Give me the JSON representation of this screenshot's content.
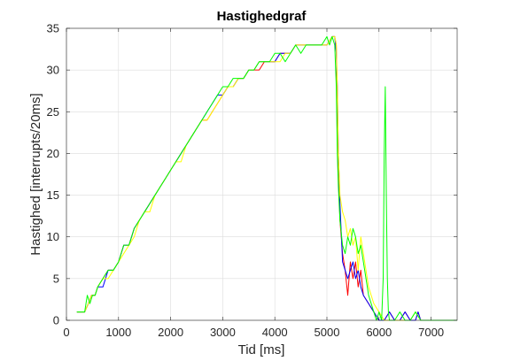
{
  "chart_data": {
    "type": "line",
    "title": "Hastighedgraf",
    "xlabel": "Tid [ms]",
    "ylabel": "Hastighed [interrupts/20ms]",
    "xlim": [
      0,
      7500
    ],
    "ylim": [
      0,
      35
    ],
    "xticks": [
      0,
      1000,
      2000,
      3000,
      4000,
      5000,
      6000,
      7000
    ],
    "xtick_labels": [
      "0",
      "1000",
      "2000",
      "3000",
      "4000",
      "5000",
      "6000",
      "7000"
    ],
    "yticks": [
      0,
      5,
      10,
      15,
      20,
      25,
      30,
      35
    ],
    "ytick_labels": [
      "0",
      "5",
      "10",
      "15",
      "20",
      "25",
      "30",
      "35"
    ],
    "grid": true,
    "series": [
      {
        "color": "#ff0000",
        "x": [
          200,
          350,
          420,
          480,
          550,
          600,
          700,
          800,
          900,
          1000,
          1100,
          1200,
          1300,
          1400,
          1500,
          1600,
          1700,
          1800,
          1900,
          2000,
          2100,
          2200,
          2300,
          2400,
          2500,
          2600,
          2700,
          2800,
          2900,
          3000,
          3100,
          3200,
          3300,
          3400,
          3500,
          3600,
          3700,
          3800,
          3900,
          4000,
          4100,
          4200,
          4300,
          4400,
          4500,
          4600,
          4700,
          4800,
          4900,
          5000,
          5100,
          5150,
          5180,
          5200,
          5220,
          5250,
          5300,
          5350,
          5400,
          5450,
          5500,
          5550,
          5600,
          5650,
          5700,
          5800,
          5900,
          6000,
          6050,
          6100,
          6200,
          6300,
          6400,
          6500,
          6600,
          6700,
          6750,
          6800,
          7000,
          7500
        ],
        "y": [
          1,
          1,
          2,
          3,
          3,
          4,
          5,
          6,
          6,
          7,
          9,
          9,
          11,
          12,
          13,
          14,
          15,
          16,
          17,
          18,
          19,
          20,
          21,
          22,
          23,
          24,
          24,
          25,
          26,
          27,
          28,
          28,
          29,
          29,
          30,
          30,
          30,
          31,
          31,
          31,
          32,
          32,
          32,
          33,
          33,
          33,
          33,
          33,
          33,
          33,
          34,
          34,
          33,
          25,
          18,
          12,
          8,
          6,
          3,
          7,
          5,
          7,
          4,
          6,
          3,
          2,
          1,
          0,
          0,
          0,
          1,
          0,
          0,
          1,
          0,
          0,
          1,
          0,
          0,
          0
        ]
      },
      {
        "color": "#0000ff",
        "x": [
          200,
          350,
          420,
          480,
          550,
          600,
          700,
          800,
          900,
          1000,
          1100,
          1200,
          1300,
          1400,
          1500,
          1600,
          1700,
          1800,
          1900,
          2000,
          2100,
          2200,
          2300,
          2400,
          2500,
          2600,
          2700,
          2800,
          2900,
          3000,
          3100,
          3200,
          3300,
          3400,
          3500,
          3600,
          3700,
          3800,
          3900,
          4000,
          4100,
          4200,
          4300,
          4400,
          4500,
          4600,
          4700,
          4800,
          4900,
          5000,
          5100,
          5150,
          5180,
          5200,
          5220,
          5250,
          5300,
          5350,
          5400,
          5450,
          5500,
          5550,
          5600,
          5650,
          5700,
          5800,
          5900,
          6000,
          6100,
          6200,
          6300,
          6400,
          6500,
          6600,
          6700,
          6750,
          6800,
          7000,
          7500
        ],
        "y": [
          1,
          1,
          2,
          3,
          3,
          4,
          4,
          6,
          6,
          7,
          9,
          9,
          11,
          12,
          13,
          14,
          15,
          16,
          17,
          18,
          19,
          20,
          21,
          22,
          23,
          24,
          25,
          26,
          27,
          27,
          28,
          28,
          29,
          29,
          30,
          30,
          31,
          31,
          31,
          31,
          32,
          32,
          32,
          33,
          33,
          33,
          33,
          33,
          33,
          33,
          34,
          34,
          32,
          28,
          20,
          14,
          7,
          6,
          5,
          6,
          7,
          5,
          6,
          4,
          3,
          2,
          1,
          0,
          0,
          1,
          0,
          0,
          1,
          0,
          0,
          1,
          0,
          0,
          0
        ]
      },
      {
        "color": "#ffff00",
        "x": [
          200,
          350,
          420,
          480,
          550,
          600,
          700,
          800,
          900,
          1000,
          1100,
          1200,
          1300,
          1400,
          1500,
          1600,
          1700,
          1800,
          1900,
          2000,
          2100,
          2200,
          2300,
          2400,
          2500,
          2600,
          2700,
          2800,
          2900,
          3000,
          3100,
          3200,
          3300,
          3400,
          3500,
          3600,
          3700,
          3800,
          3900,
          4000,
          4100,
          4200,
          4300,
          4400,
          4500,
          4600,
          4700,
          4800,
          4900,
          5000,
          5100,
          5150,
          5180,
          5200,
          5220,
          5250,
          5300,
          5350,
          5400,
          5450,
          5500,
          5550,
          5600,
          5650,
          5700,
          5800,
          5900,
          6000,
          6100,
          6200,
          6300,
          6400,
          6500,
          6600,
          6700,
          6800,
          7000,
          7500
        ],
        "y": [
          1,
          1,
          2,
          3,
          3,
          4,
          5,
          5,
          6,
          7,
          8,
          9,
          10,
          12,
          13,
          13,
          15,
          16,
          17,
          18,
          19,
          19,
          21,
          22,
          23,
          24,
          24,
          25,
          26,
          27,
          28,
          28,
          29,
          29,
          30,
          30,
          31,
          31,
          31,
          31,
          31,
          32,
          32,
          33,
          33,
          33,
          33,
          33,
          33,
          33,
          34,
          34,
          33,
          28,
          20,
          15,
          13,
          12,
          10,
          11,
          9,
          10,
          6,
          10,
          8,
          4,
          2,
          1,
          0,
          0,
          0,
          0,
          0,
          0,
          1,
          0,
          0,
          0
        ]
      },
      {
        "color": "#00ff00",
        "x": [
          200,
          350,
          400,
          450,
          500,
          550,
          600,
          700,
          800,
          900,
          1000,
          1100,
          1200,
          1300,
          1400,
          1500,
          1600,
          1700,
          1800,
          1900,
          2000,
          2100,
          2200,
          2300,
          2400,
          2500,
          2600,
          2700,
          2800,
          2900,
          3000,
          3100,
          3200,
          3300,
          3400,
          3500,
          3600,
          3700,
          3800,
          3900,
          4000,
          4100,
          4200,
          4300,
          4400,
          4500,
          4600,
          4700,
          4800,
          4900,
          5000,
          5050,
          5100,
          5150,
          5180,
          5200,
          5220,
          5250,
          5300,
          5350,
          5400,
          5450,
          5500,
          5550,
          5600,
          5650,
          5700,
          5750,
          5800,
          5900,
          5950,
          6000,
          6050,
          6080,
          6100,
          6120,
          6140,
          6160,
          6180,
          6200,
          6250,
          6300,
          6400,
          6500,
          6600,
          6700,
          6800,
          7000,
          7500
        ],
        "y": [
          1,
          1,
          3,
          2,
          3,
          3,
          4,
          5,
          6,
          6,
          7,
          9,
          9,
          11,
          12,
          13,
          14,
          15,
          16,
          17,
          18,
          19,
          20,
          21,
          22,
          23,
          24,
          25,
          26,
          27,
          28,
          28,
          29,
          29,
          29,
          30,
          30,
          31,
          31,
          31,
          32,
          32,
          31,
          32,
          33,
          32,
          33,
          33,
          33,
          33,
          34,
          33,
          34,
          33,
          28,
          20,
          16,
          12,
          9,
          8,
          10,
          9,
          11,
          10,
          8,
          9,
          7,
          5,
          3,
          1,
          0,
          1,
          0,
          5,
          20,
          28,
          15,
          5,
          1,
          0,
          0,
          0,
          1,
          0,
          0,
          1,
          0,
          0,
          0
        ]
      }
    ]
  }
}
